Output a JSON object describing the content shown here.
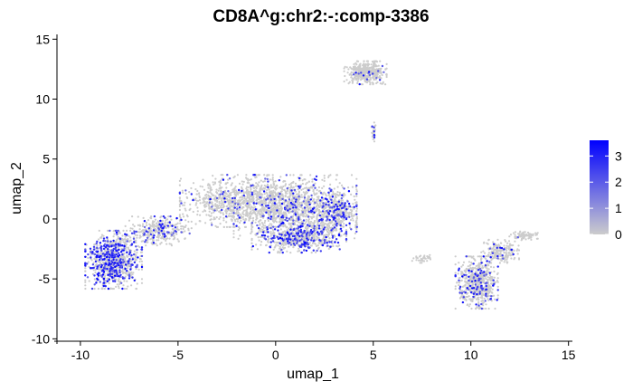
{
  "chart_data": {
    "type": "scatter",
    "title": "CD8A^g:chr2:-:comp-3386",
    "xlabel": "umap_1",
    "ylabel": "umap_2",
    "xlim": [
      -11.2,
      15.2
    ],
    "ylim": [
      -10.2,
      15.4
    ],
    "xticks": [
      -10,
      -5,
      0,
      5,
      10,
      15
    ],
    "yticks": [
      -10,
      -5,
      0,
      5,
      10,
      15
    ],
    "grid": false,
    "legend": {
      "placement": "right",
      "type": "colorbar",
      "min": 0,
      "max": 3.6,
      "ticks": [
        0,
        1,
        2,
        3
      ],
      "color_low": "#cccccc",
      "color_high": "#0000ff"
    },
    "point_color_base": "#cccccc",
    "point_color_expressed": "#0000ff",
    "clusters": [
      {
        "center": [
          -8.3,
          -3.4
        ],
        "spread": [
          1.2,
          2.0
        ],
        "count": 900,
        "expr_fraction": 0.32
      },
      {
        "center": [
          -6.0,
          -1.0
        ],
        "spread": [
          1.4,
          1.0
        ],
        "count": 350,
        "expr_fraction": 0.18
      },
      {
        "center": [
          -2.0,
          1.5
        ],
        "spread": [
          2.4,
          1.8
        ],
        "count": 800,
        "expr_fraction": 0.06
      },
      {
        "center": [
          1.0,
          1.0
        ],
        "spread": [
          2.6,
          2.2
        ],
        "count": 1300,
        "expr_fraction": 0.12
      },
      {
        "center": [
          1.2,
          -1.6
        ],
        "spread": [
          2.0,
          1.0
        ],
        "count": 600,
        "expr_fraction": 0.3
      },
      {
        "center": [
          3.2,
          0.5
        ],
        "spread": [
          0.8,
          1.5
        ],
        "count": 300,
        "expr_fraction": 0.18
      },
      {
        "center": [
          4.6,
          12.2
        ],
        "spread": [
          0.9,
          0.8
        ],
        "count": 420,
        "expr_fraction": 0.03
      },
      {
        "center": [
          10.3,
          -5.3
        ],
        "spread": [
          0.9,
          1.8
        ],
        "count": 650,
        "expr_fraction": 0.14
      },
      {
        "center": [
          11.5,
          -2.7
        ],
        "spread": [
          0.8,
          0.8
        ],
        "count": 200,
        "expr_fraction": 0.08
      },
      {
        "center": [
          12.7,
          -1.4
        ],
        "spread": [
          0.6,
          0.3
        ],
        "count": 80,
        "expr_fraction": 0.03
      },
      {
        "center": [
          7.6,
          -3.3
        ],
        "spread": [
          0.5,
          0.3
        ],
        "count": 40,
        "expr_fraction": 0.03
      },
      {
        "center": [
          5.0,
          7.2
        ],
        "spread": [
          0.1,
          0.7
        ],
        "count": 30,
        "expr_fraction": 0.1
      }
    ]
  }
}
